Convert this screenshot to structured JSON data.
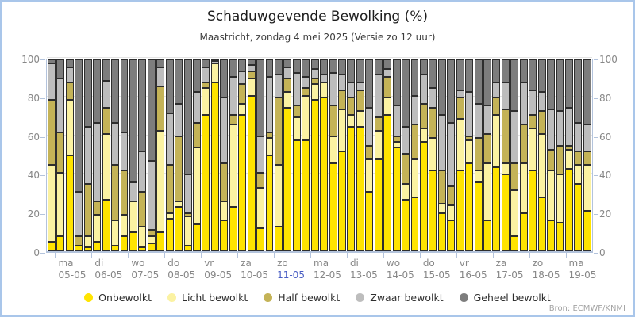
{
  "title": "Schaduwgevende Bewolking (%)",
  "subtitle": "Maastricht, zondag 4 mei 2025 (Versie zo 12 uur)",
  "source": "Bron: ECMWF/KNMI",
  "y_axis": {
    "ticks": [
      0,
      20,
      40,
      60,
      80,
      100
    ]
  },
  "legend": [
    {
      "label": "Onbewolkt",
      "color": "#ffe400"
    },
    {
      "label": "Licht bewolkt",
      "color": "#fbf2a2"
    },
    {
      "label": "Half bewolkt",
      "color": "#c4b357"
    },
    {
      "label": "Zwaar bewolkt",
      "color": "#bdbdbd"
    },
    {
      "label": "Geheel bewolkt",
      "color": "#7d7d7d"
    }
  ],
  "chart_data": {
    "type": "bar",
    "variant": "stacked-percentage",
    "title": "Schaduwgevende Bewolking (%)",
    "subtitle": "Maastricht, zondag 4 mei 2025 (Versie zo 12 uur)",
    "ylim": [
      0,
      100
    ],
    "yticks": [
      0,
      20,
      40,
      60,
      80,
      100
    ],
    "series": [
      "Onbewolkt",
      "Licht bewolkt",
      "Half bewolkt",
      "Zwaar bewolkt",
      "Geheel bewolkt"
    ],
    "bar_interval_hours": 6,
    "highlight_color": "#4a5ec4",
    "days": [
      {
        "weekday": "",
        "date": "",
        "highlight": false,
        "bars": [
          [
            5,
            40,
            34,
            19,
            2
          ]
        ]
      },
      {
        "weekday": "ma",
        "date": "05-05",
        "highlight": false,
        "bars": [
          [
            8,
            33,
            21,
            28,
            10
          ],
          [
            50,
            29,
            9,
            8,
            4
          ],
          [
            3,
            0,
            5,
            23,
            69
          ],
          [
            2,
            6,
            27,
            30,
            35
          ]
        ]
      },
      {
        "weekday": "di",
        "date": "06-05",
        "highlight": false,
        "bars": [
          [
            5,
            14,
            7,
            41,
            33
          ],
          [
            27,
            34,
            14,
            14,
            11
          ],
          [
            3,
            13,
            29,
            22,
            33
          ],
          [
            8,
            11,
            23,
            20,
            38
          ]
        ]
      },
      {
        "weekday": "wo",
        "date": "07-05",
        "highlight": false,
        "bars": [
          [
            10,
            16,
            0,
            10,
            64
          ],
          [
            2,
            11,
            18,
            21,
            48
          ],
          [
            4,
            4,
            3,
            36,
            53
          ],
          [
            10,
            53,
            23,
            10,
            4
          ]
        ]
      },
      {
        "weekday": "do",
        "date": "08-05",
        "highlight": false,
        "bars": [
          [
            17,
            3,
            25,
            27,
            28
          ],
          [
            23,
            3,
            34,
            17,
            23
          ],
          [
            3,
            15,
            2,
            20,
            60
          ],
          [
            14,
            40,
            13,
            16,
            17
          ]
        ]
      },
      {
        "weekday": "vr",
        "date": "09-05",
        "highlight": false,
        "bars": [
          [
            71,
            14,
            3,
            8,
            4
          ],
          [
            88,
            10,
            0,
            1,
            1
          ],
          [
            16,
            10,
            20,
            34,
            20
          ],
          [
            23,
            43,
            5,
            20,
            9
          ]
        ]
      },
      {
        "weekday": "za",
        "date": "10-05",
        "highlight": false,
        "bars": [
          [
            71,
            6,
            10,
            7,
            6
          ],
          [
            81,
            9,
            4,
            3,
            3
          ],
          [
            12,
            21,
            8,
            19,
            40
          ],
          [
            50,
            9,
            3,
            29,
            9
          ]
        ]
      },
      {
        "weekday": "zo",
        "date": "11-05",
        "highlight": true,
        "bars": [
          [
            13,
            32,
            35,
            12,
            8
          ],
          [
            75,
            8,
            7,
            6,
            4
          ],
          [
            58,
            12,
            6,
            17,
            7
          ],
          [
            58,
            23,
            4,
            6,
            9
          ]
        ]
      },
      {
        "weekday": "ma",
        "date": "12-05",
        "highlight": false,
        "bars": [
          [
            79,
            8,
            3,
            5,
            5
          ],
          [
            80,
            8,
            0,
            4,
            8
          ],
          [
            46,
            14,
            16,
            17,
            7
          ],
          [
            52,
            22,
            10,
            8,
            8
          ]
        ]
      },
      {
        "weekday": "di",
        "date": "13-05",
        "highlight": false,
        "bars": [
          [
            65,
            6,
            9,
            8,
            12
          ],
          [
            65,
            8,
            11,
            4,
            12
          ],
          [
            31,
            17,
            7,
            20,
            25
          ],
          [
            48,
            15,
            7,
            22,
            8
          ]
        ]
      },
      {
        "weekday": "wo",
        "date": "14-05",
        "highlight": false,
        "bars": [
          [
            71,
            9,
            11,
            4,
            5
          ],
          [
            54,
            3,
            3,
            16,
            24
          ],
          [
            27,
            8,
            16,
            14,
            35
          ],
          [
            28,
            20,
            18,
            15,
            19
          ]
        ]
      },
      {
        "weekday": "do",
        "date": "15-05",
        "highlight": false,
        "bars": [
          [
            57,
            7,
            13,
            15,
            8
          ],
          [
            42,
            17,
            16,
            10,
            15
          ],
          [
            20,
            5,
            17,
            29,
            29
          ],
          [
            16,
            8,
            10,
            33,
            33
          ]
        ]
      },
      {
        "weekday": "vr",
        "date": "16-05",
        "highlight": false,
        "bars": [
          [
            42,
            27,
            11,
            4,
            16
          ],
          [
            46,
            12,
            2,
            23,
            17
          ],
          [
            36,
            6,
            17,
            18,
            23
          ],
          [
            16,
            30,
            15,
            15,
            24
          ]
        ]
      },
      {
        "weekday": "za",
        "date": "17-05",
        "highlight": false,
        "bars": [
          [
            44,
            27,
            9,
            8,
            12
          ],
          [
            40,
            6,
            28,
            14,
            12
          ],
          [
            8,
            24,
            14,
            27,
            27
          ],
          [
            20,
            26,
            20,
            22,
            12
          ]
        ]
      },
      {
        "weekday": "zo",
        "date": "18-05",
        "highlight": false,
        "bars": [
          [
            42,
            22,
            7,
            13,
            16
          ],
          [
            28,
            33,
            12,
            10,
            17
          ],
          [
            16,
            26,
            11,
            21,
            26
          ],
          [
            15,
            25,
            15,
            18,
            27
          ]
        ]
      },
      {
        "weekday": "ma",
        "date": "19-05",
        "highlight": false,
        "bars": [
          [
            43,
            10,
            2,
            20,
            25
          ],
          [
            35,
            10,
            7,
            15,
            33
          ],
          [
            21,
            24,
            7,
            14,
            34
          ]
        ]
      }
    ]
  }
}
